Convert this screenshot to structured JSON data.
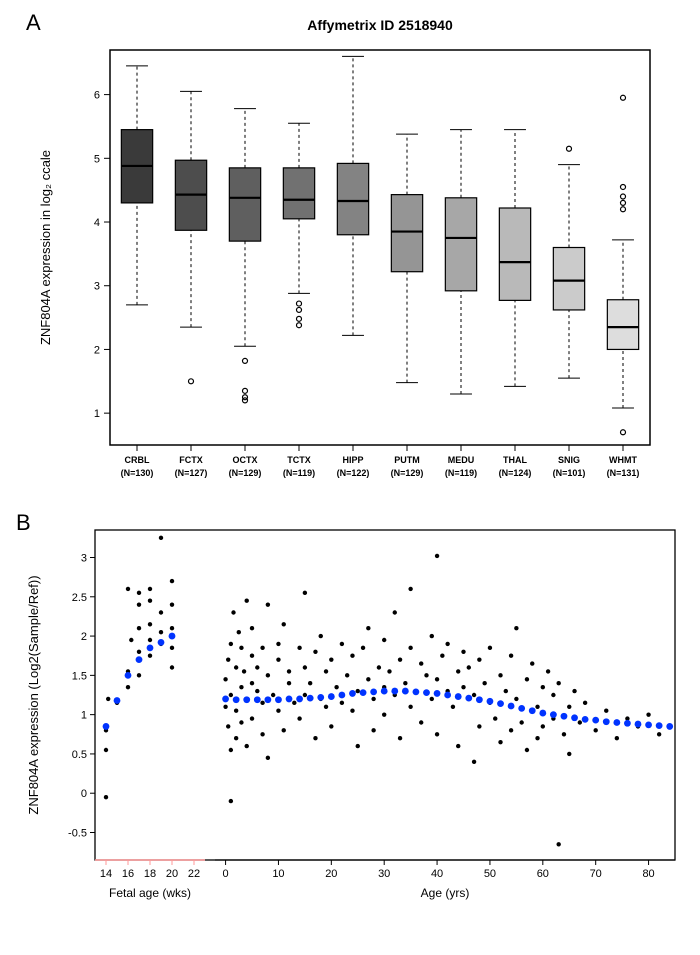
{
  "panelA": {
    "label": "A",
    "title": "Affymetrix ID 2518940",
    "title_fontsize": 14,
    "title_fontweight": "bold",
    "ylabel": "ZNF804A expression in log₂ ccale",
    "label_fontsize": 13,
    "ylim": [
      0.5,
      6.7
    ],
    "yticks": [
      1,
      2,
      3,
      4,
      5,
      6
    ],
    "axis_fontsize": 12,
    "tick_fontsize": 11,
    "xtick_fontsize": 9,
    "background_color": "#ffffff",
    "border_color": "#000000",
    "box_border_color": "#000000",
    "whisker_dash": "3,3",
    "categories": [
      {
        "name": "CRBL",
        "n": "(N=130)",
        "fill": "#3a3a3a",
        "q1": 4.3,
        "median": 4.88,
        "q3": 5.45,
        "wlow": 2.7,
        "whigh": 6.45,
        "outliers": []
      },
      {
        "name": "FCTX",
        "n": "(N=127)",
        "fill": "#4d4d4d",
        "q1": 3.87,
        "median": 4.43,
        "q3": 4.97,
        "wlow": 2.35,
        "whigh": 6.05,
        "outliers": [
          1.5
        ]
      },
      {
        "name": "OCTX",
        "n": "(N=129)",
        "fill": "#5f5f5f",
        "q1": 3.7,
        "median": 4.38,
        "q3": 4.85,
        "wlow": 2.05,
        "whigh": 5.78,
        "outliers": [
          1.82,
          1.35,
          1.25,
          1.2
        ]
      },
      {
        "name": "TCTX",
        "n": "(N=119)",
        "fill": "#717171",
        "q1": 4.05,
        "median": 4.35,
        "q3": 4.85,
        "wlow": 2.88,
        "whigh": 5.55,
        "outliers": [
          2.72,
          2.62,
          2.48,
          2.38
        ]
      },
      {
        "name": "HIPP",
        "n": "(N=122)",
        "fill": "#838383",
        "q1": 3.8,
        "median": 4.33,
        "q3": 4.92,
        "wlow": 2.22,
        "whigh": 6.6,
        "outliers": []
      },
      {
        "name": "PUTM",
        "n": "(N=129)",
        "fill": "#959595",
        "q1": 3.22,
        "median": 3.85,
        "q3": 4.43,
        "wlow": 1.48,
        "whigh": 5.38,
        "outliers": []
      },
      {
        "name": "MEDU",
        "n": "(N=119)",
        "fill": "#a7a7a7",
        "q1": 2.92,
        "median": 3.75,
        "q3": 4.38,
        "wlow": 1.3,
        "whigh": 5.45,
        "outliers": []
      },
      {
        "name": "THAL",
        "n": "(N=124)",
        "fill": "#b9b9b9",
        "q1": 2.77,
        "median": 3.37,
        "q3": 4.22,
        "wlow": 1.42,
        "whigh": 5.45,
        "outliers": []
      },
      {
        "name": "SNIG",
        "n": "(N=101)",
        "fill": "#cbcbcb",
        "q1": 2.62,
        "median": 3.08,
        "q3": 3.6,
        "wlow": 1.55,
        "whigh": 4.9,
        "outliers": [
          5.15
        ]
      },
      {
        "name": "WHMT",
        "n": "(N=131)",
        "fill": "#dddddd",
        "q1": 2.0,
        "median": 2.35,
        "q3": 2.78,
        "wlow": 1.08,
        "whigh": 3.72,
        "outliers": [
          5.95,
          4.55,
          4.4,
          4.3,
          4.2,
          0.7
        ]
      }
    ]
  },
  "panelB": {
    "label": "B",
    "ylabel": "ZNF804A expression (Log2(Sample/Ref))",
    "xlabel_fetal": "Fetal age (wks)",
    "xlabel_age": "Age (yrs)",
    "label_fontsize": 13,
    "ylim": [
      -0.85,
      3.35
    ],
    "yticks": [
      -0.5,
      0,
      0.5,
      1,
      1.5,
      2,
      2.5,
      3
    ],
    "fetal_ticks": [
      14,
      16,
      18,
      20,
      22
    ],
    "age_ticks": [
      0,
      10,
      20,
      30,
      40,
      50,
      60,
      70,
      80
    ],
    "fetal_xlim": [
      13,
      23
    ],
    "age_xlim": [
      -2,
      85
    ],
    "fetal_axis_color": "#ff9999",
    "age_axis_color": "#000000",
    "point_color": "#000000",
    "point_radius": 2.2,
    "trend_color": "#0033ff",
    "trend_radius": 3.4,
    "fetal_points": [
      [
        14,
        -0.05
      ],
      [
        14,
        0.8
      ],
      [
        14.2,
        1.2
      ],
      [
        14,
        0.55
      ],
      [
        15,
        1.15
      ],
      [
        16,
        1.55
      ],
      [
        16,
        2.6
      ],
      [
        16.3,
        1.95
      ],
      [
        16,
        1.35
      ],
      [
        17,
        1.8
      ],
      [
        17,
        2.1
      ],
      [
        17,
        2.55
      ],
      [
        17,
        2.4
      ],
      [
        17,
        1.5
      ],
      [
        18,
        2.15
      ],
      [
        18,
        1.75
      ],
      [
        18,
        2.45
      ],
      [
        18,
        1.95
      ],
      [
        18,
        2.6
      ],
      [
        19,
        1.9
      ],
      [
        19,
        2.3
      ],
      [
        19,
        2.05
      ],
      [
        19,
        3.25
      ],
      [
        20,
        2.1
      ],
      [
        20,
        2.4
      ],
      [
        20,
        1.6
      ],
      [
        20,
        2.7
      ],
      [
        20,
        1.85
      ]
    ],
    "fetal_trend": [
      [
        14,
        0.85
      ],
      [
        15,
        1.18
      ],
      [
        16,
        1.5
      ],
      [
        17,
        1.7
      ],
      [
        18,
        1.85
      ],
      [
        19,
        1.92
      ],
      [
        20,
        2.0
      ]
    ],
    "age_points": [
      [
        0,
        1.45
      ],
      [
        0,
        1.1
      ],
      [
        0.5,
        1.7
      ],
      [
        0.5,
        0.85
      ],
      [
        1,
        1.25
      ],
      [
        1,
        1.9
      ],
      [
        1,
        0.55
      ],
      [
        1,
        -0.1
      ],
      [
        1.5,
        2.3
      ],
      [
        2,
        1.6
      ],
      [
        2,
        1.05
      ],
      [
        2,
        0.7
      ],
      [
        2.5,
        2.05
      ],
      [
        3,
        1.35
      ],
      [
        3,
        1.85
      ],
      [
        3,
        0.9
      ],
      [
        3.5,
        1.55
      ],
      [
        4,
        1.2
      ],
      [
        4,
        0.6
      ],
      [
        4,
        2.45
      ],
      [
        5,
        1.75
      ],
      [
        5,
        1.4
      ],
      [
        5,
        0.95
      ],
      [
        5,
        2.1
      ],
      [
        6,
        1.3
      ],
      [
        6,
        1.6
      ],
      [
        7,
        1.15
      ],
      [
        7,
        1.85
      ],
      [
        7,
        0.75
      ],
      [
        8,
        1.5
      ],
      [
        8,
        2.4
      ],
      [
        8,
        0.45
      ],
      [
        9,
        1.25
      ],
      [
        10,
        1.7
      ],
      [
        10,
        1.05
      ],
      [
        10,
        1.9
      ],
      [
        11,
        0.8
      ],
      [
        11,
        2.15
      ],
      [
        12,
        1.4
      ],
      [
        12,
        1.55
      ],
      [
        13,
        1.15
      ],
      [
        14,
        1.85
      ],
      [
        14,
        0.95
      ],
      [
        15,
        1.6
      ],
      [
        15,
        1.25
      ],
      [
        15,
        2.55
      ],
      [
        16,
        1.4
      ],
      [
        17,
        1.8
      ],
      [
        17,
        0.7
      ],
      [
        18,
        1.2
      ],
      [
        18,
        2.0
      ],
      [
        19,
        1.55
      ],
      [
        19,
        1.1
      ],
      [
        20,
        1.7
      ],
      [
        20,
        0.85
      ],
      [
        21,
        1.35
      ],
      [
        22,
        1.9
      ],
      [
        22,
        1.15
      ],
      [
        23,
        1.5
      ],
      [
        24,
        1.05
      ],
      [
        24,
        1.75
      ],
      [
        25,
        1.3
      ],
      [
        25,
        0.6
      ],
      [
        26,
        1.85
      ],
      [
        27,
        1.45
      ],
      [
        27,
        2.1
      ],
      [
        28,
        1.2
      ],
      [
        28,
        0.8
      ],
      [
        29,
        1.6
      ],
      [
        30,
        1.35
      ],
      [
        30,
        1.95
      ],
      [
        30,
        1.0
      ],
      [
        31,
        1.55
      ],
      [
        32,
        1.25
      ],
      [
        32,
        2.3
      ],
      [
        33,
        1.7
      ],
      [
        33,
        0.7
      ],
      [
        34,
        1.4
      ],
      [
        35,
        1.85
      ],
      [
        35,
        1.1
      ],
      [
        35,
        2.6
      ],
      [
        36,
        1.3
      ],
      [
        37,
        1.65
      ],
      [
        37,
        0.9
      ],
      [
        38,
        1.5
      ],
      [
        39,
        1.2
      ],
      [
        39,
        2.0
      ],
      [
        40,
        1.45
      ],
      [
        40,
        0.75
      ],
      [
        40,
        3.02
      ],
      [
        41,
        1.75
      ],
      [
        42,
        1.3
      ],
      [
        42,
        1.9
      ],
      [
        43,
        1.1
      ],
      [
        44,
        1.55
      ],
      [
        44,
        0.6
      ],
      [
        45,
        1.35
      ],
      [
        45,
        1.8
      ],
      [
        46,
        1.6
      ],
      [
        47,
        1.25
      ],
      [
        47,
        0.4
      ],
      [
        48,
        1.7
      ],
      [
        48,
        0.85
      ],
      [
        49,
        1.4
      ],
      [
        50,
        1.15
      ],
      [
        50,
        1.85
      ],
      [
        51,
        0.95
      ],
      [
        52,
        1.5
      ],
      [
        52,
        0.65
      ],
      [
        53,
        1.3
      ],
      [
        54,
        1.75
      ],
      [
        54,
        0.8
      ],
      [
        55,
        1.2
      ],
      [
        55,
        2.1
      ],
      [
        56,
        0.9
      ],
      [
        57,
        1.45
      ],
      [
        57,
        0.55
      ],
      [
        58,
        1.65
      ],
      [
        59,
        1.1
      ],
      [
        59,
        0.7
      ],
      [
        60,
        1.35
      ],
      [
        60,
        0.85
      ],
      [
        61,
        1.55
      ],
      [
        62,
        0.95
      ],
      [
        62,
        1.25
      ],
      [
        63,
        -0.65
      ],
      [
        63,
        1.4
      ],
      [
        64,
        0.75
      ],
      [
        65,
        1.1
      ],
      [
        65,
        0.5
      ],
      [
        66,
        1.3
      ],
      [
        67,
        0.9
      ],
      [
        68,
        1.15
      ],
      [
        70,
        0.8
      ],
      [
        72,
        1.05
      ],
      [
        74,
        0.7
      ],
      [
        76,
        0.95
      ],
      [
        78,
        0.85
      ],
      [
        80,
        1.0
      ],
      [
        82,
        0.75
      ],
      [
        84,
        0.85
      ]
    ],
    "age_trend": [
      [
        0,
        1.2
      ],
      [
        2,
        1.19
      ],
      [
        4,
        1.19
      ],
      [
        6,
        1.19
      ],
      [
        8,
        1.19
      ],
      [
        10,
        1.19
      ],
      [
        12,
        1.2
      ],
      [
        14,
        1.2
      ],
      [
        16,
        1.21
      ],
      [
        18,
        1.22
      ],
      [
        20,
        1.23
      ],
      [
        22,
        1.25
      ],
      [
        24,
        1.27
      ],
      [
        26,
        1.28
      ],
      [
        28,
        1.29
      ],
      [
        30,
        1.3
      ],
      [
        32,
        1.3
      ],
      [
        34,
        1.3
      ],
      [
        36,
        1.29
      ],
      [
        38,
        1.28
      ],
      [
        40,
        1.27
      ],
      [
        42,
        1.25
      ],
      [
        44,
        1.23
      ],
      [
        46,
        1.21
      ],
      [
        48,
        1.19
      ],
      [
        50,
        1.17
      ],
      [
        52,
        1.14
      ],
      [
        54,
        1.11
      ],
      [
        56,
        1.08
      ],
      [
        58,
        1.05
      ],
      [
        60,
        1.02
      ],
      [
        62,
        1.0
      ],
      [
        64,
        0.98
      ],
      [
        66,
        0.96
      ],
      [
        68,
        0.94
      ],
      [
        70,
        0.93
      ],
      [
        72,
        0.91
      ],
      [
        74,
        0.9
      ],
      [
        76,
        0.89
      ],
      [
        78,
        0.88
      ],
      [
        80,
        0.87
      ],
      [
        82,
        0.86
      ],
      [
        84,
        0.85
      ]
    ]
  }
}
